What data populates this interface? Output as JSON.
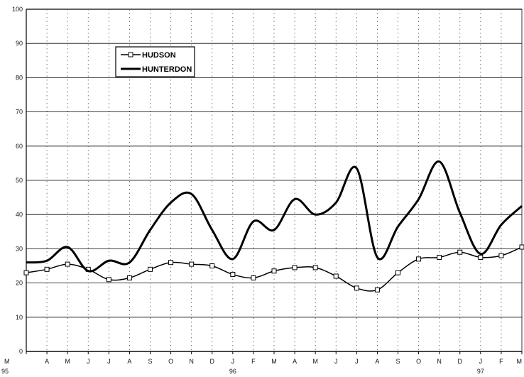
{
  "chart_data": {
    "type": "line",
    "title": "",
    "xlabel": "",
    "ylabel": "",
    "ylim": [
      0,
      100
    ],
    "yticks": [
      0,
      10,
      20,
      30,
      40,
      50,
      60,
      70,
      80,
      90,
      100
    ],
    "categories": [
      "M",
      "A",
      "M",
      "J",
      "J",
      "A",
      "S",
      "O",
      "N",
      "D",
      "J",
      "F",
      "M",
      "A",
      "M",
      "J",
      "J",
      "A",
      "S",
      "O",
      "N",
      "D",
      "J",
      "F",
      "M"
    ],
    "year_labels": [
      {
        "index": 0,
        "label": "95"
      },
      {
        "index": 10,
        "label": "96"
      },
      {
        "index": 22,
        "label": "97"
      }
    ],
    "grid": true,
    "legend_position": "top-left",
    "series": [
      {
        "name": "HUDSON",
        "marker": "square",
        "color": "#000000",
        "values": [
          23,
          24,
          25.5,
          24,
          21,
          21.5,
          24,
          26,
          25.5,
          25,
          22.5,
          21.5,
          23.5,
          24.5,
          24.5,
          22,
          18.5,
          18,
          23,
          27,
          27.5,
          29,
          27.5,
          28,
          30.5
        ]
      },
      {
        "name": "HUNTERDON",
        "marker": "none",
        "color": "#000000",
        "values": [
          26,
          26.5,
          30.5,
          23.5,
          26.5,
          26,
          35.5,
          43.5,
          46,
          35.5,
          27,
          38,
          35.5,
          44.5,
          40,
          43.5,
          53.5,
          27.5,
          36.5,
          44.5,
          55.5,
          40.5,
          28.5,
          37,
          42.5
        ]
      }
    ]
  }
}
